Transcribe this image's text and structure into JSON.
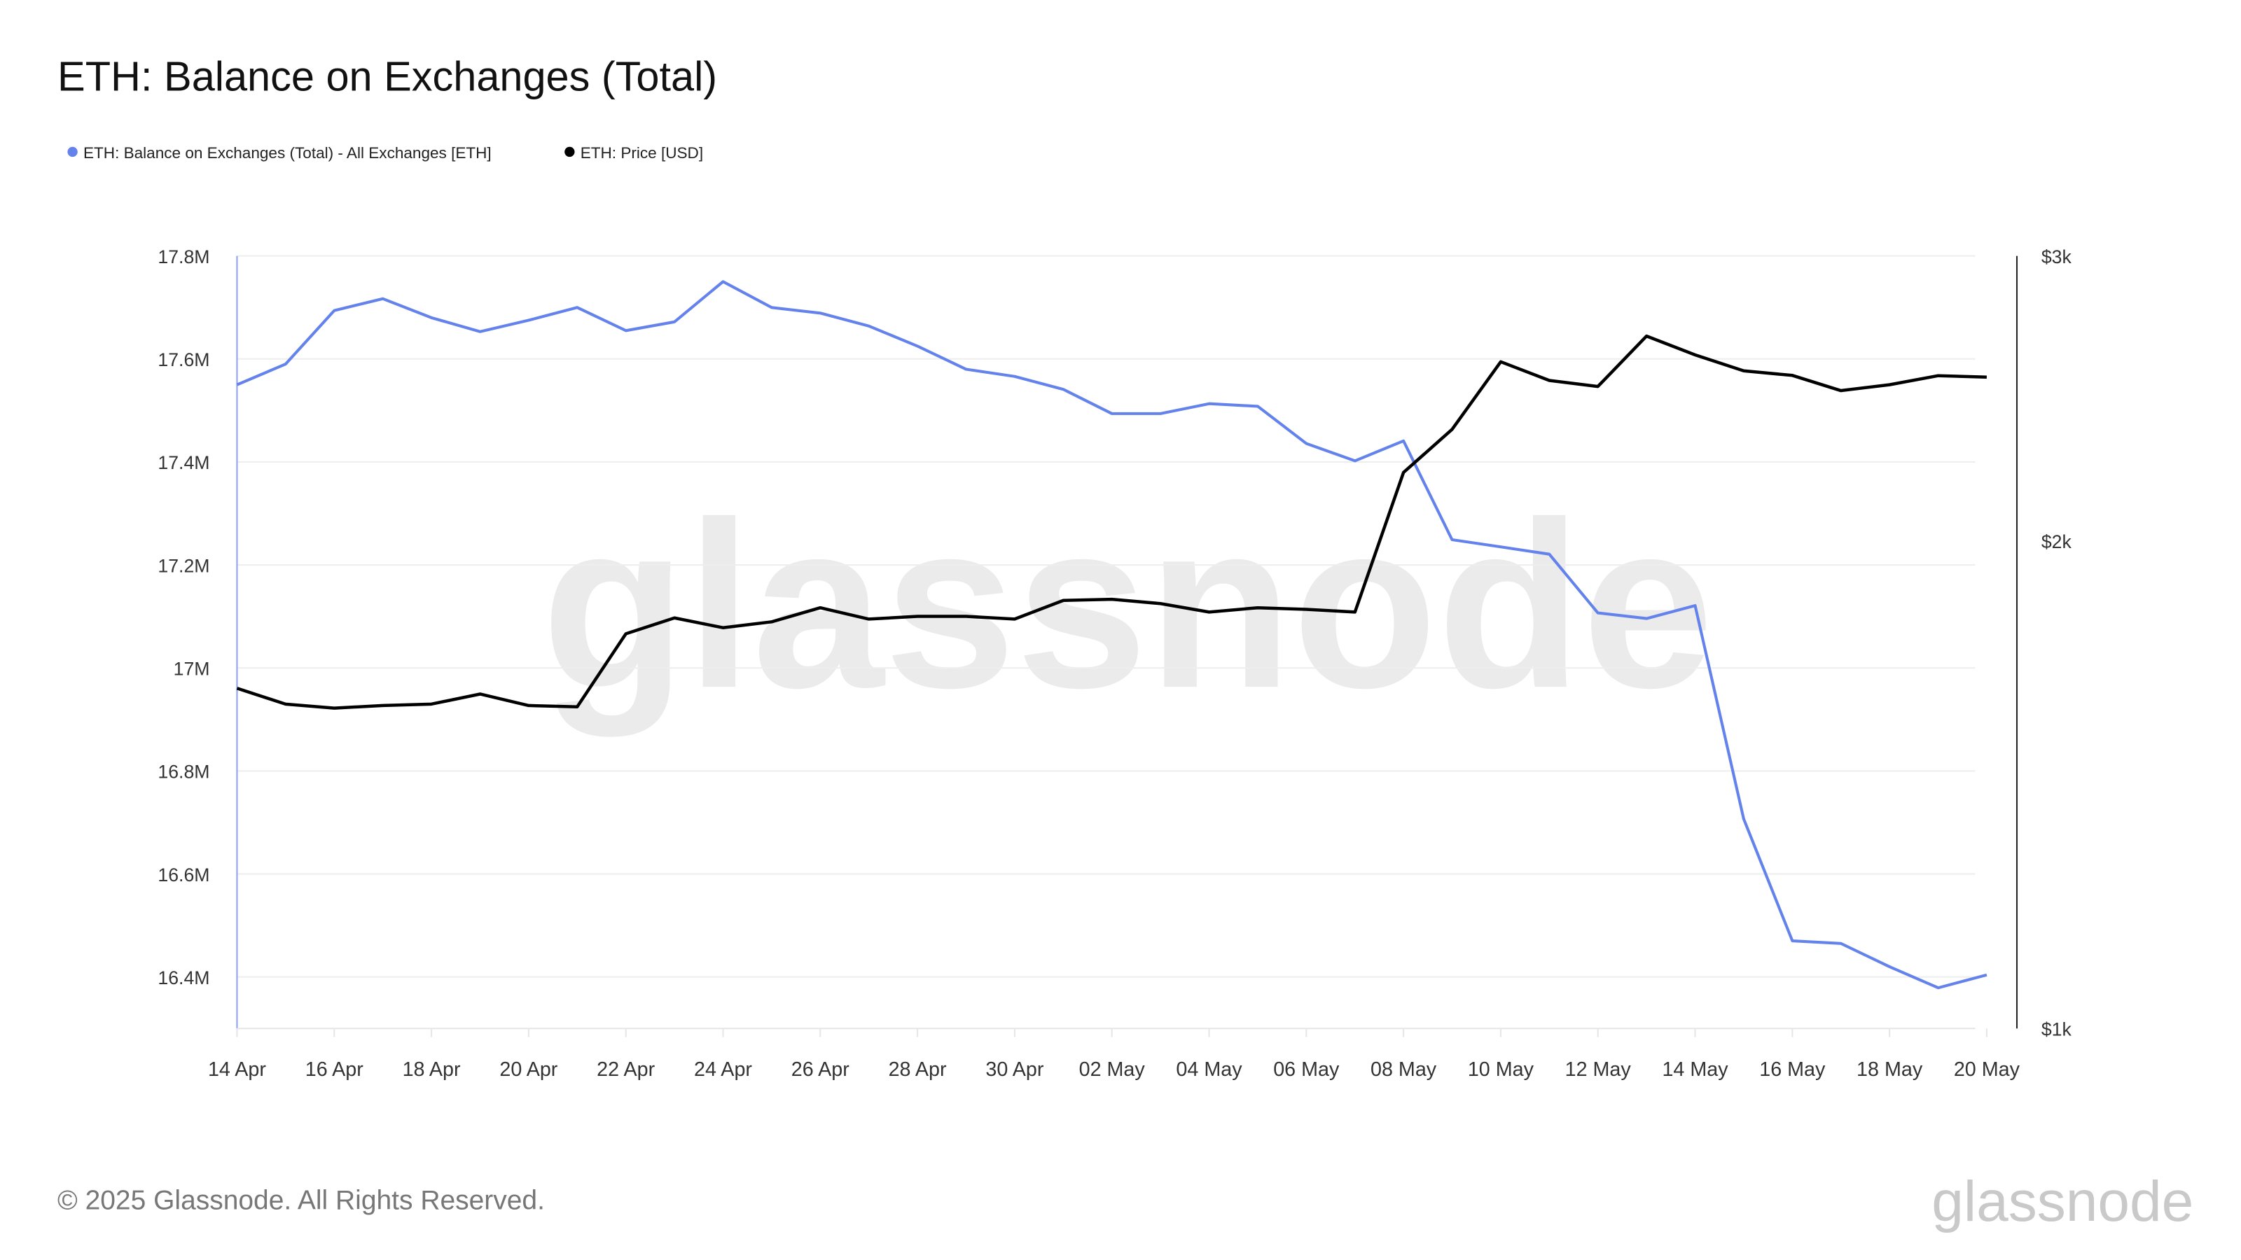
{
  "chart_data": {
    "type": "line",
    "title": "ETH: Balance on Exchanges (Total)",
    "x": [
      "14 Apr",
      "15 Apr",
      "16 Apr",
      "17 Apr",
      "18 Apr",
      "19 Apr",
      "20 Apr",
      "21 Apr",
      "22 Apr",
      "23 Apr",
      "24 Apr",
      "25 Apr",
      "26 Apr",
      "27 Apr",
      "28 Apr",
      "29 Apr",
      "30 Apr",
      "01 May",
      "02 May",
      "03 May",
      "04 May",
      "05 May",
      "06 May",
      "07 May",
      "08 May",
      "09 May",
      "10 May",
      "11 May",
      "12 May",
      "13 May",
      "14 May",
      "15 May",
      "16 May",
      "17 May",
      "18 May",
      "19 May",
      "20 May"
    ],
    "x_tick_labels": [
      "14 Apr",
      "16 Apr",
      "18 Apr",
      "20 Apr",
      "22 Apr",
      "24 Apr",
      "26 Apr",
      "28 Apr",
      "30 Apr",
      "02 May",
      "04 May",
      "06 May",
      "08 May",
      "10 May",
      "12 May",
      "14 May",
      "16 May",
      "18 May",
      "20 May"
    ],
    "series": [
      {
        "name": "ETH: Balance on Exchanges (Total) - All Exchanges [ETH]",
        "axis": "left",
        "color": "#6482ec",
        "values": [
          17.55,
          17.59,
          17.694,
          17.717,
          17.68,
          17.653,
          17.675,
          17.7,
          17.655,
          17.672,
          17.75,
          17.7,
          17.689,
          17.664,
          17.625,
          17.58,
          17.566,
          17.541,
          17.494,
          17.494,
          17.513,
          17.508,
          17.436,
          17.402,
          17.441,
          17.249,
          17.235,
          17.221,
          17.107,
          17.096,
          17.121,
          16.707,
          16.47,
          16.465,
          16.42,
          16.379,
          16.404
        ]
      },
      {
        "name": "ETH: Price [USD]",
        "axis": "right",
        "color": "#000000",
        "values": [
          1622,
          1586,
          1577,
          1583,
          1586,
          1609,
          1583,
          1580,
          1753,
          1793,
          1768,
          1783,
          1819,
          1790,
          1797,
          1797,
          1790,
          1838,
          1841,
          1830,
          1808,
          1819,
          1815,
          1808,
          2205,
          2344,
          2581,
          2513,
          2492,
          2677,
          2606,
          2548,
          2531,
          2477,
          2498,
          2530,
          2525
        ]
      }
    ],
    "y_left": {
      "unit": "M ETH",
      "range": [
        16.3,
        17.8
      ],
      "ticks": [
        17.8,
        17.6,
        17.4,
        17.2,
        17.0,
        16.8,
        16.6,
        16.4
      ],
      "tick_labels": [
        "17.8M",
        "17.6M",
        "17.4M",
        "17.2M",
        "17M",
        "16.8M",
        "16.6M",
        "16.4M"
      ]
    },
    "y_right": {
      "scale": "log",
      "range": [
        1000,
        3000
      ],
      "ticks": [
        3000,
        2000,
        1000
      ],
      "tick_labels": [
        "$3k",
        "$2k",
        "$1k"
      ]
    },
    "grid": true,
    "legend": "top-left"
  },
  "footer": {
    "copyright": "© 2025 Glassnode. All Rights Reserved.",
    "logo": "glassnode"
  },
  "watermark": "glassnode"
}
